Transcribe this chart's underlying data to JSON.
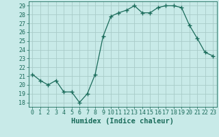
{
  "x": [
    0,
    1,
    2,
    3,
    4,
    5,
    6,
    7,
    8,
    9,
    10,
    11,
    12,
    13,
    14,
    15,
    16,
    17,
    18,
    19,
    20,
    21,
    22,
    23
  ],
  "y": [
    21.2,
    20.5,
    20.0,
    20.5,
    19.2,
    19.2,
    18.0,
    19.0,
    21.2,
    25.5,
    27.8,
    28.2,
    28.5,
    29.0,
    28.2,
    28.2,
    28.8,
    29.0,
    29.0,
    28.8,
    26.8,
    25.3,
    23.7,
    23.3
  ],
  "line_color": "#1a6b5a",
  "marker": "+",
  "marker_size": 4,
  "background_color": "#c8eae8",
  "grid_color": "#a8ccc8",
  "xlabel": "Humidex (Indice chaleur)",
  "xlim": [
    -0.5,
    23.5
  ],
  "ylim": [
    17.5,
    29.5
  ],
  "yticks": [
    18,
    19,
    20,
    21,
    22,
    23,
    24,
    25,
    26,
    27,
    28,
    29
  ],
  "xticks": [
    0,
    1,
    2,
    3,
    4,
    5,
    6,
    7,
    8,
    9,
    10,
    11,
    12,
    13,
    14,
    15,
    16,
    17,
    18,
    19,
    20,
    21,
    22,
    23
  ],
  "tick_label_color": "#1a6b5a",
  "xlabel_color": "#1a6b5a",
  "xlabel_fontsize": 7.5,
  "tick_fontsize": 6
}
